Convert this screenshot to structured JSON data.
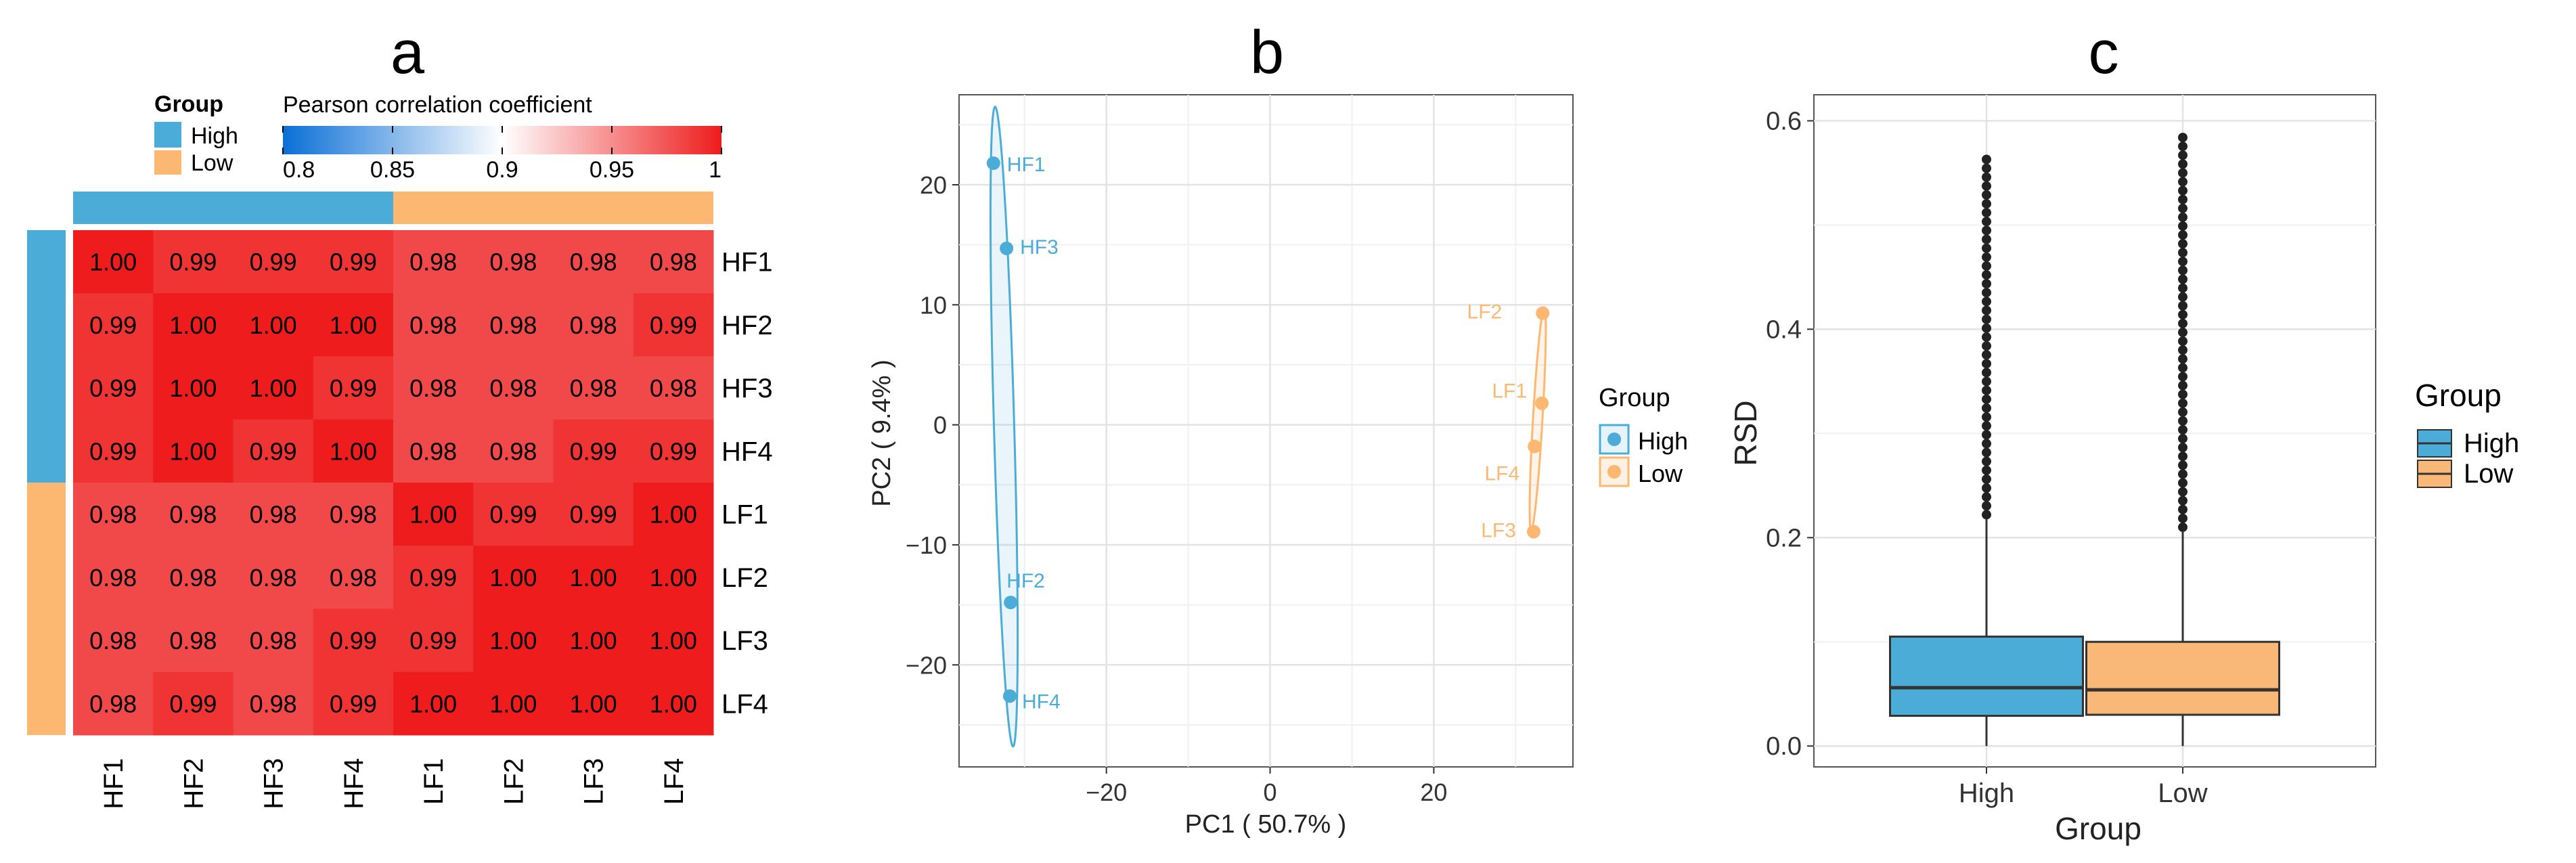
{
  "panel_labels": [
    "a",
    "b",
    "c"
  ],
  "colors": {
    "high": "#4badd7",
    "low": "#fcb871",
    "heat_low": "#0a6fd6",
    "heat_mid": "#ffffff",
    "heat_high": "#ee1c1c",
    "box_high": "#4badd7",
    "box_low": "#f9b878"
  },
  "chart_data": [
    {
      "type": "heatmap",
      "panel": "a",
      "group_legend_title": "Group",
      "group_legend_items": [
        {
          "label": "High",
          "color": "#4badd7"
        },
        {
          "label": "Low",
          "color": "#fcb871"
        }
      ],
      "colorbar_title": "Pearson correlation coefficient",
      "colorbar_range": [
        0.8,
        1
      ],
      "colorbar_ticks": [
        "0.8",
        "0.85",
        "0.9",
        "0.95",
        "1"
      ],
      "rows": [
        "HF1",
        "HF2",
        "HF3",
        "HF4",
        "LF1",
        "LF2",
        "LF3",
        "LF4"
      ],
      "columns": [
        "HF1",
        "HF2",
        "HF3",
        "HF4",
        "LF1",
        "LF2",
        "LF3",
        "LF4"
      ],
      "row_groups": [
        "High",
        "High",
        "High",
        "High",
        "Low",
        "Low",
        "Low",
        "Low"
      ],
      "values": [
        [
          "1.00",
          "0.99",
          "0.99",
          "0.99",
          "0.98",
          "0.98",
          "0.98",
          "0.98"
        ],
        [
          "0.99",
          "1.00",
          "1.00",
          "1.00",
          "0.98",
          "0.98",
          "0.98",
          "0.99"
        ],
        [
          "0.99",
          "1.00",
          "1.00",
          "0.99",
          "0.98",
          "0.98",
          "0.98",
          "0.98"
        ],
        [
          "0.99",
          "1.00",
          "0.99",
          "1.00",
          "0.98",
          "0.98",
          "0.99",
          "0.99"
        ],
        [
          "0.98",
          "0.98",
          "0.98",
          "0.98",
          "1.00",
          "0.99",
          "0.99",
          "1.00"
        ],
        [
          "0.98",
          "0.98",
          "0.98",
          "0.98",
          "0.99",
          "1.00",
          "1.00",
          "1.00"
        ],
        [
          "0.98",
          "0.98",
          "0.98",
          "0.99",
          "0.99",
          "1.00",
          "1.00",
          "1.00"
        ],
        [
          "0.98",
          "0.99",
          "0.98",
          "0.99",
          "1.00",
          "1.00",
          "1.00",
          "1.00"
        ]
      ]
    },
    {
      "type": "scatter",
      "panel": "b",
      "xlabel": "PC1 ( 50.7% )",
      "ylabel": "PC2 ( 9.4% )",
      "xlim": [
        -38,
        37
      ],
      "ylim": [
        -28.5,
        27.5
      ],
      "xticks": [
        -20,
        0,
        20
      ],
      "yticks": [
        -20,
        -10,
        0,
        10,
        20
      ],
      "grid": true,
      "legend_title": "Group",
      "legend_position": "right",
      "series": [
        {
          "name": "High",
          "color": "#4badd7",
          "points": [
            {
              "label": "HF1",
              "x": -33.8,
              "y": 21.8
            },
            {
              "label": "HF3",
              "x": -32.2,
              "y": 14.7
            },
            {
              "label": "HF2",
              "x": -31.7,
              "y": -14.8
            },
            {
              "label": "HF4",
              "x": -31.8,
              "y": -22.6
            }
          ]
        },
        {
          "name": "Low",
          "color": "#fcb871",
          "points": [
            {
              "label": "LF2",
              "x": 33.3,
              "y": 9.3
            },
            {
              "label": "LF1",
              "x": 33.2,
              "y": 1.8
            },
            {
              "label": "LF4",
              "x": 32.3,
              "y": -1.8
            },
            {
              "label": "LF3",
              "x": 32.2,
              "y": -8.9
            }
          ]
        }
      ]
    },
    {
      "type": "box",
      "panel": "c",
      "xlabel": "Group",
      "ylabel": "RSD",
      "categories": [
        "High",
        "Low"
      ],
      "ylim": [
        -0.02,
        0.625
      ],
      "yticks": [
        "0.0",
        "0.2",
        "0.4",
        "0.6"
      ],
      "grid": true,
      "legend_title": "Group",
      "legend_position": "right",
      "boxes": [
        {
          "name": "High",
          "color": "#4badd7",
          "q1": 0.029,
          "median": 0.056,
          "q3": 0.105,
          "whisker_low": 0.0,
          "whisker_high": 0.218,
          "outliers_max": 0.563
        },
        {
          "name": "Low",
          "color": "#f9b878",
          "q1": 0.03,
          "median": 0.054,
          "q3": 0.1,
          "whisker_low": 0.0,
          "whisker_high": 0.206,
          "outliers_max": 0.584
        }
      ]
    }
  ]
}
